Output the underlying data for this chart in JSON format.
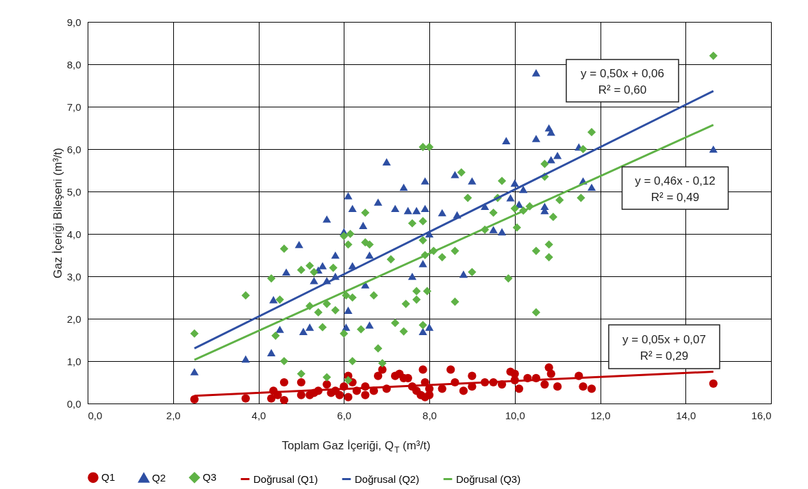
{
  "chart_data": {
    "type": "scatter",
    "xlabel": "Toplam Gaz İçeriği, Q$_{T}$ (m³/t)",
    "ylabel": "Gaz İçeriği Bileşeni (m³/t)",
    "xlim": [
      0,
      16
    ],
    "ylim": [
      0,
      9
    ],
    "xticks": [
      {
        "value": 0,
        "label": "0,0"
      },
      {
        "value": 2,
        "label": "2,0"
      },
      {
        "value": 4,
        "label": "4,0"
      },
      {
        "value": 6,
        "label": "6,0"
      },
      {
        "value": 8,
        "label": "8,0"
      },
      {
        "value": 10,
        "label": "10,0"
      },
      {
        "value": 12,
        "label": "12,0"
      },
      {
        "value": 14,
        "label": "14,0"
      },
      {
        "value": 16,
        "label": "16,0"
      }
    ],
    "yticks": [
      {
        "value": 0,
        "label": "0,0"
      },
      {
        "value": 1,
        "label": "1,0"
      },
      {
        "value": 2,
        "label": "2,0"
      },
      {
        "value": 3,
        "label": "3,0"
      },
      {
        "value": 4,
        "label": "4,0"
      },
      {
        "value": 5,
        "label": "5,0"
      },
      {
        "value": 6,
        "label": "6,0"
      },
      {
        "value": 7,
        "label": "7,0"
      },
      {
        "value": 8,
        "label": "8,0"
      },
      {
        "value": 9,
        "label": "9,0"
      }
    ],
    "grid": true,
    "legend": "bottom",
    "annotations": [
      "y = 0,50x + 0,06\nR² = 0,60",
      "y = 0,46x - 0,12\nR² = 0,49",
      "y = 0,05x + 0,07\nR² = 0,29"
    ],
    "series": [
      {
        "name": "Q1",
        "marker": "circle",
        "color": "#c00000",
        "x": [
          2.5,
          3.7,
          4.3,
          4.35,
          4.45,
          4.6,
          4.6,
          5.0,
          5.0,
          5.2,
          5.3,
          5.4,
          5.6,
          5.7,
          5.8,
          5.9,
          6.0,
          6.1,
          6.1,
          6.2,
          6.3,
          6.5,
          6.5,
          6.7,
          6.8,
          6.9,
          7.0,
          7.2,
          7.3,
          7.4,
          7.5,
          7.6,
          7.7,
          7.8,
          7.85,
          7.9,
          7.9,
          8.0,
          8.0,
          8.3,
          8.5,
          8.6,
          8.8,
          9.0,
          9.0,
          9.3,
          9.5,
          9.7,
          9.9,
          10.0,
          10.0,
          10.1,
          10.3,
          10.5,
          10.7,
          10.8,
          10.85,
          11.0,
          11.5,
          11.6,
          11.8,
          14.65
        ],
        "values": [
          0.1,
          0.12,
          0.12,
          0.3,
          0.2,
          0.08,
          0.5,
          0.5,
          0.2,
          0.2,
          0.25,
          0.3,
          0.45,
          0.25,
          0.3,
          0.2,
          0.4,
          0.65,
          0.15,
          0.5,
          0.3,
          0.4,
          0.2,
          0.3,
          0.65,
          0.8,
          0.35,
          0.65,
          0.7,
          0.6,
          0.6,
          0.4,
          0.3,
          0.2,
          0.8,
          0.5,
          0.15,
          0.35,
          0.2,
          0.35,
          0.8,
          0.5,
          0.3,
          0.65,
          0.4,
          0.5,
          0.5,
          0.45,
          0.75,
          0.55,
          0.7,
          0.35,
          0.6,
          0.6,
          0.45,
          0.85,
          0.7,
          0.4,
          0.65,
          0.4,
          0.35,
          0.47
        ]
      },
      {
        "name": "Q2",
        "marker": "triangle",
        "color": "#2e4fa3",
        "x": [
          2.5,
          3.7,
          4.3,
          4.35,
          4.5,
          4.65,
          4.95,
          5.05,
          5.2,
          5.3,
          5.4,
          5.5,
          5.6,
          5.6,
          5.8,
          5.8,
          6.0,
          6.05,
          6.1,
          6.1,
          6.2,
          6.2,
          6.45,
          6.5,
          6.6,
          6.6,
          6.8,
          7.0,
          7.2,
          7.4,
          7.5,
          7.6,
          7.7,
          7.9,
          7.9,
          7.85,
          7.85,
          8.0,
          8.0,
          8.3,
          8.6,
          8.65,
          8.8,
          9.0,
          9.3,
          9.5,
          9.7,
          9.8,
          9.9,
          10.0,
          10.1,
          10.2,
          10.5,
          10.5,
          10.8,
          10.85,
          10.85,
          11.0,
          10.7,
          10.7,
          11.5,
          11.6,
          11.8,
          14.65
        ],
        "values": [
          0.75,
          1.05,
          1.2,
          2.45,
          1.75,
          3.1,
          3.75,
          1.7,
          1.8,
          2.9,
          3.15,
          3.25,
          4.35,
          2.9,
          3.0,
          3.5,
          4.05,
          1.8,
          2.2,
          4.9,
          4.6,
          3.25,
          4.2,
          2.8,
          3.5,
          1.85,
          4.75,
          5.7,
          4.6,
          5.1,
          4.55,
          3.0,
          4.55,
          5.25,
          4.6,
          3.3,
          1.7,
          1.8,
          4.0,
          4.5,
          5.4,
          4.45,
          3.05,
          5.25,
          4.65,
          4.1,
          4.05,
          6.2,
          4.85,
          5.2,
          4.7,
          5.05,
          7.8,
          6.25,
          6.5,
          6.4,
          5.75,
          5.85,
          4.55,
          4.65,
          6.05,
          5.25,
          5.1,
          6.0
        ]
      },
      {
        "name": "Q3",
        "marker": "diamond",
        "color": "#5fb246",
        "x": [
          2.5,
          3.7,
          4.3,
          4.4,
          4.5,
          4.6,
          4.6,
          5.0,
          5.0,
          5.2,
          5.2,
          5.3,
          5.4,
          5.5,
          5.6,
          5.6,
          5.75,
          5.8,
          6.0,
          6.0,
          6.05,
          6.1,
          6.15,
          6.2,
          6.2,
          6.1,
          6.4,
          6.5,
          6.5,
          6.6,
          6.7,
          6.8,
          6.9,
          7.1,
          7.2,
          7.4,
          7.45,
          7.6,
          7.7,
          7.7,
          7.85,
          8.0,
          7.85,
          7.85,
          7.9,
          7.95,
          7.85,
          8.1,
          8.3,
          8.6,
          8.6,
          8.75,
          8.9,
          9.0,
          9.3,
          9.5,
          9.6,
          9.7,
          9.85,
          10.0,
          10.05,
          10.2,
          10.35,
          10.5,
          10.5,
          10.7,
          10.7,
          10.8,
          10.8,
          10.9,
          11.05,
          11.55,
          11.6,
          11.8,
          14.65
        ],
        "values": [
          1.65,
          2.55,
          2.95,
          1.6,
          2.45,
          3.65,
          1.0,
          0.7,
          3.15,
          3.25,
          2.3,
          3.1,
          2.15,
          1.8,
          0.62,
          2.35,
          3.2,
          2.2,
          1.65,
          3.95,
          2.55,
          3.75,
          4.0,
          2.5,
          1.0,
          0.55,
          1.75,
          3.8,
          4.5,
          3.75,
          2.55,
          1.3,
          0.95,
          3.4,
          1.9,
          1.7,
          2.35,
          4.25,
          2.65,
          2.45,
          6.05,
          6.05,
          3.85,
          4.3,
          3.5,
          2.65,
          1.85,
          3.6,
          3.45,
          2.4,
          3.6,
          5.45,
          4.85,
          3.1,
          4.1,
          4.5,
          4.85,
          5.25,
          2.95,
          4.6,
          4.15,
          4.55,
          4.65,
          3.6,
          2.15,
          5.65,
          5.35,
          3.75,
          3.45,
          4.4,
          4.8,
          4.85,
          6.0,
          6.4,
          8.2
        ]
      },
      {
        "name": "Doğrusal (Q1)",
        "type": "line",
        "line_style": "solid",
        "color": "#c00000",
        "x": [
          2.5,
          14.65
        ],
        "values": [
          0.18,
          0.75
        ]
      },
      {
        "name": "Doğrusal (Q2)",
        "type": "line",
        "line_style": "solid",
        "color": "#2e4fa3",
        "x": [
          2.5,
          14.65
        ],
        "values": [
          1.3,
          7.37
        ]
      },
      {
        "name": "Doğrusal (Q3)",
        "type": "line",
        "line_style": "solid",
        "color": "#5fb246",
        "x": [
          2.5,
          14.65
        ],
        "values": [
          1.03,
          6.57
        ]
      }
    ]
  }
}
